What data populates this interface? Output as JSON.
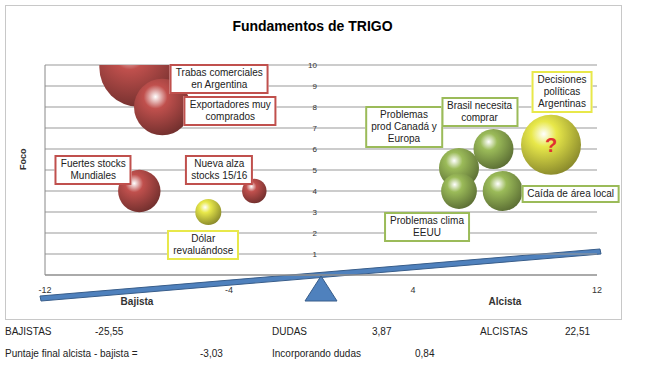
{
  "chart_data": {
    "type": "bubble",
    "title": "Fundamentos de TRIGO",
    "y_label": "Foco",
    "xlim": [
      -12,
      12
    ],
    "xticks": [
      -12,
      {
        "value": -8,
        "label": "Bajista"
      },
      -4,
      4,
      {
        "value": 8,
        "label": "Alcista"
      },
      12
    ],
    "ylim": [
      0,
      10
    ],
    "yticks": [
      1,
      2,
      3,
      4,
      5,
      6,
      7,
      8,
      9,
      10
    ],
    "grid": true,
    "points": [
      {
        "name": "Trabas comerciales en Argentina",
        "x": -7.9,
        "y": 9.9,
        "size": 16,
        "color": "#c0504d"
      },
      {
        "name": "Exportadores muy comprados",
        "x": -6.9,
        "y": 8.0,
        "size": 8,
        "color": "#c0504d"
      },
      {
        "name": "Fuertes stocks Mundiales",
        "x": -7.9,
        "y": 4.0,
        "size": 4.5,
        "color": "#c0504d"
      },
      {
        "name": "Nueva alza stocks 15/16",
        "x": -2.9,
        "y": 4.0,
        "size": 1.5,
        "color": "#c0504d"
      },
      {
        "name": "Dólar revaluándose",
        "x": -4.9,
        "y": 3.0,
        "size": 1.7,
        "color": "#e8e84a"
      },
      {
        "name": "Problemas prod Canadá y Europa",
        "x": 6.0,
        "y": 5.1,
        "size": 4,
        "color": "#9bbb59"
      },
      {
        "name": "Problemas clima EEUU",
        "x": 6.0,
        "y": 4.0,
        "size": 3.2,
        "color": "#9bbb59"
      },
      {
        "name": "Brasil necesita comprar",
        "x": 7.5,
        "y": 6.0,
        "size": 4,
        "color": "#9bbb59"
      },
      {
        "name": "Caída de área local",
        "x": 7.9,
        "y": 4.0,
        "size": 4,
        "color": "#9bbb59"
      },
      {
        "name": "Decisiones políticas Argentinas",
        "x": 10.0,
        "y": 6.2,
        "size": 9,
        "color": "#e8e84a",
        "bubble_text": "?"
      }
    ]
  },
  "summary": {
    "bajistas": {
      "label": "BAJISTAS",
      "value": "-25,55"
    },
    "dudas": {
      "label": "DUDAS",
      "value": "3,87"
    },
    "alcistas": {
      "label": "ALCISTAS",
      "value": "22,51"
    },
    "puntaje": {
      "label": "Puntaje final alcista - bajista =",
      "value": "-3,03"
    },
    "incorporando": {
      "label": "Incorporando dudas",
      "value": "0,84"
    }
  }
}
